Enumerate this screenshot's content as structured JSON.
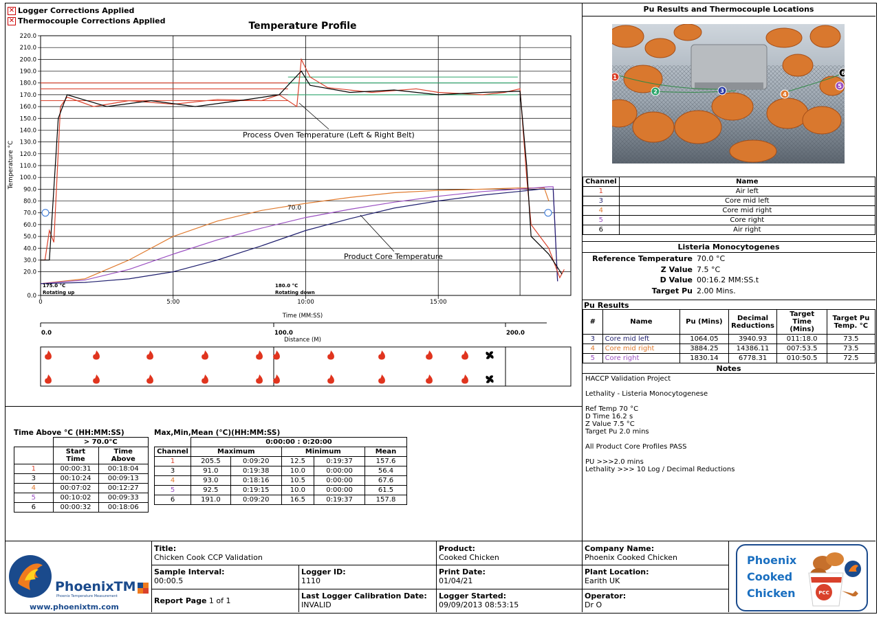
{
  "legend": {
    "logger_corrections": "Logger Corrections Applied",
    "thermocouple_corrections": "Thermocouple Corrections Applied"
  },
  "chart_data": {
    "type": "line",
    "title": "Temperature Profile",
    "xlabel": "Time (MM:SS)",
    "ylabel": "Temperature °C",
    "ylim": [
      0,
      220
    ],
    "xlim_seconds": [
      0,
      1200
    ],
    "x_ticks": [
      "0",
      "5:00",
      "10:00",
      "15:00"
    ],
    "y_ticks": [
      "0.0",
      "20.0",
      "30.0",
      "40.0",
      "50.0",
      "60.0",
      "70.0",
      "80.0",
      "90.0",
      "100.0",
      "110.0",
      "120.0",
      "130.0",
      "140.0",
      "150.0",
      "160.0",
      "170.0",
      "180.0",
      "190.0",
      "200.0",
      "210.0",
      "220.0"
    ],
    "annotations": {
      "oven": "Process Oven Temperature (Left & Right Belt)",
      "product": "Product Core Temperature",
      "ref_value": "70.0",
      "zone1_temp": "175.0 °C",
      "zone1_mode": "Rotating up",
      "zone2_temp": "180.0 °C",
      "zone2_mode": "Rotating down"
    },
    "distance": {
      "label": "Distance (M)",
      "ticks": [
        "0.0",
        "100.0",
        "200.0"
      ]
    },
    "series": [
      {
        "name": "1",
        "color": "#d9412b",
        "points": [
          [
            0,
            30
          ],
          [
            10,
            30
          ],
          [
            20,
            55
          ],
          [
            30,
            45
          ],
          [
            45,
            160
          ],
          [
            60,
            168
          ],
          [
            120,
            160
          ],
          [
            200,
            165
          ],
          [
            300,
            162
          ],
          [
            400,
            166
          ],
          [
            500,
            165
          ],
          [
            540,
            170
          ],
          [
            580,
            160
          ],
          [
            590,
            200
          ],
          [
            610,
            185
          ],
          [
            650,
            176
          ],
          [
            750,
            172
          ],
          [
            850,
            175
          ],
          [
            900,
            172
          ],
          [
            1000,
            170
          ],
          [
            1050,
            172
          ],
          [
            1085,
            175
          ],
          [
            1100,
            100
          ],
          [
            1110,
            60
          ],
          [
            1150,
            40
          ],
          [
            1175,
            15
          ],
          [
            1185,
            22
          ]
        ]
      },
      {
        "name": "3",
        "color": "#1f1f6e",
        "points": [
          [
            0,
            10
          ],
          [
            100,
            11
          ],
          [
            200,
            14
          ],
          [
            300,
            20
          ],
          [
            400,
            30
          ],
          [
            500,
            42
          ],
          [
            600,
            55
          ],
          [
            700,
            65
          ],
          [
            800,
            74
          ],
          [
            900,
            80
          ],
          [
            1000,
            85
          ],
          [
            1080,
            88
          ],
          [
            1130,
            90
          ],
          [
            1160,
            90
          ],
          [
            1170,
            12
          ]
        ]
      },
      {
        "name": "4",
        "color": "#e07a2e",
        "points": [
          [
            0,
            10
          ],
          [
            100,
            14
          ],
          [
            200,
            30
          ],
          [
            300,
            50
          ],
          [
            400,
            63
          ],
          [
            500,
            72
          ],
          [
            600,
            78
          ],
          [
            700,
            83
          ],
          [
            800,
            87
          ],
          [
            900,
            89
          ],
          [
            1000,
            90
          ],
          [
            1080,
            91
          ],
          [
            1140,
            91
          ],
          [
            1150,
            80
          ]
        ]
      },
      {
        "name": "5",
        "color": "#9a4fc1",
        "points": [
          [
            0,
            10
          ],
          [
            100,
            13
          ],
          [
            200,
            22
          ],
          [
            300,
            35
          ],
          [
            400,
            47
          ],
          [
            500,
            57
          ],
          [
            600,
            66
          ],
          [
            700,
            73
          ],
          [
            800,
            79
          ],
          [
            900,
            84
          ],
          [
            1000,
            88
          ],
          [
            1080,
            90
          ],
          [
            1150,
            92
          ],
          [
            1160,
            92
          ],
          [
            1170,
            12
          ]
        ]
      },
      {
        "name": "6",
        "color": "#000000",
        "points": [
          [
            0,
            30
          ],
          [
            20,
            30
          ],
          [
            40,
            150
          ],
          [
            60,
            170
          ],
          [
            150,
            160
          ],
          [
            250,
            165
          ],
          [
            350,
            160
          ],
          [
            450,
            165
          ],
          [
            540,
            170
          ],
          [
            590,
            190
          ],
          [
            610,
            178
          ],
          [
            700,
            172
          ],
          [
            800,
            174
          ],
          [
            900,
            170
          ],
          [
            1000,
            172
          ],
          [
            1085,
            173
          ],
          [
            1100,
            110
          ],
          [
            1110,
            50
          ],
          [
            1150,
            35
          ],
          [
            1180,
            18
          ]
        ]
      }
    ],
    "reference_lines": [
      {
        "value": 165,
        "color": "#d9412b",
        "from": 0,
        "to": 560
      },
      {
        "value": 175,
        "color": "#d9412b",
        "from": 0,
        "to": 560
      },
      {
        "value": 180,
        "color": "#d9412b",
        "from": 0,
        "to": 560
      },
      {
        "value": 170,
        "color": "#2aa56a",
        "from": 560,
        "to": 1080
      },
      {
        "value": 180,
        "color": "#2aa56a",
        "from": 560,
        "to": 1080
      },
      {
        "value": 185,
        "color": "#2aa56a",
        "from": 560,
        "to": 1080
      }
    ]
  },
  "photo_panel": {
    "title": "Pu Results and Thermocouple Locations",
    "markers": [
      "1",
      "2",
      "3",
      "4",
      "5",
      "6"
    ]
  },
  "channels": {
    "headers": [
      "Channel",
      "Name"
    ],
    "rows": [
      {
        "ch": "1",
        "name": "Air left",
        "color": "#d9412b"
      },
      {
        "ch": "3",
        "name": "Core mid left",
        "color": "#1f1f6e"
      },
      {
        "ch": "4",
        "name": "Core mid right",
        "color": "#e07a2e"
      },
      {
        "ch": "5",
        "name": "Core right",
        "color": "#9a4fc1"
      },
      {
        "ch": "6",
        "name": "Air right",
        "color": "#000000"
      }
    ]
  },
  "listeria": {
    "title": "Listeria Monocytogenes",
    "rows": [
      {
        "label": "Reference Temperature",
        "value": "70.0 °C"
      },
      {
        "label": "Z Value",
        "value": "7.5 °C"
      },
      {
        "label": "D Value",
        "value": "00:16.2 MM:SS.t"
      },
      {
        "label": "Target Pu",
        "value": "2.00 Mins."
      }
    ]
  },
  "pu_results": {
    "title": "Pu Results",
    "headers": [
      "#",
      "Name",
      "Pu (Mins)",
      "Decimal Reductions",
      "Target Time (Mins)",
      "Target Pu Temp. °C"
    ],
    "rows": [
      {
        "n": "3",
        "name": "Core mid left",
        "pu": "1064.05",
        "dec": "3940.93",
        "tt": "011:18.0",
        "tp": "73.5",
        "color": "#1f1f6e"
      },
      {
        "n": "4",
        "name": "Core mid right",
        "pu": "3884.25",
        "dec": "14386.11",
        "tt": "007:53.5",
        "tp": "73.5",
        "color": "#e07a2e"
      },
      {
        "n": "5",
        "name": "Core right",
        "pu": "1830.14",
        "dec": "6778.31",
        "tt": "010:50.5",
        "tp": "72.5",
        "color": "#9a4fc1"
      }
    ]
  },
  "notes": {
    "title": "Notes",
    "lines": [
      "HACCP Validation Project",
      "",
      "Lethality - Listeria Monocytogenese",
      "",
      "Ref Temp 70 °C",
      "D Time 16.2 s",
      "Z Value 7.5 °C",
      "Target Pu 2.0 mins",
      "",
      "All Product Core Profiles PASS",
      "",
      "PU >>>2.0 mins",
      "Lethality >>> 10 Log / Decimal Reductions"
    ]
  },
  "time_above": {
    "title": "Time Above °C (HH:MM:SS)",
    "threshold": "> 70.0°C",
    "headers": [
      "",
      "Start Time",
      "Time Above"
    ],
    "rows": [
      {
        "ch": "1",
        "start": "00:00:31",
        "above": "00:18:04",
        "color": "#d9412b"
      },
      {
        "ch": "3",
        "start": "00:10:24",
        "above": "00:09:13",
        "color": "#000000"
      },
      {
        "ch": "4",
        "start": "00:07:02",
        "above": "00:12:27",
        "color": "#e07a2e"
      },
      {
        "ch": "5",
        "start": "00:10:02",
        "above": "00:09:33",
        "color": "#9a4fc1"
      },
      {
        "ch": "6",
        "start": "00:00:32",
        "above": "00:18:06",
        "color": "#000000"
      }
    ]
  },
  "maxminmean": {
    "title": "Max,Min,Mean (°C)(HH:MM:SS)",
    "range": "0:00:00 : 0:20:00",
    "headers": [
      "Channel",
      "Maximum",
      "Minimum",
      "Mean"
    ],
    "rows": [
      {
        "ch": "1",
        "max": "205.5",
        "maxt": "0:09:20",
        "min": "12.5",
        "mint": "0:19:37",
        "mean": "157.6",
        "color": "#d9412b"
      },
      {
        "ch": "3",
        "max": "91.0",
        "maxt": "0:19:38",
        "min": "10.0",
        "mint": "0:00:00",
        "mean": "56.4",
        "color": "#000000"
      },
      {
        "ch": "4",
        "max": "93.0",
        "maxt": "0:18:16",
        "min": "10.5",
        "mint": "0:00:00",
        "mean": "67.6",
        "color": "#e07a2e"
      },
      {
        "ch": "5",
        "max": "92.5",
        "maxt": "0:19:15",
        "min": "10.0",
        "mint": "0:00:00",
        "mean": "61.5",
        "color": "#9a4fc1"
      },
      {
        "ch": "6",
        "max": "191.0",
        "maxt": "0:09:20",
        "min": "16.5",
        "mint": "0:19:37",
        "mean": "157.8",
        "color": "#000000"
      }
    ]
  },
  "footer": {
    "brand": "PhoenixTM",
    "brand_sub": "Phoenix Temperature Measurement",
    "website": "www.phoenixtm.com",
    "title_label": "Title:",
    "title_value": "Chicken Cook CCP Validation",
    "product_label": "Product:",
    "product_value": "Cooked Chicken",
    "sample_label": "Sample Interval:",
    "sample_value": "00:00.5",
    "logger_label": "Logger ID:",
    "logger_value": "1110",
    "print_label": "Print Date:",
    "print_value": "01/04/21",
    "report_label": "Report Page",
    "report_value": "1 of 1",
    "calib_label": "Last Logger Calibration Date:",
    "calib_value": "INVALID",
    "started_label": "Logger Started:",
    "started_value": "09/09/2013 08:53:15",
    "company_label": "Company Name:",
    "company_value": "Phoenix Cooked Chicken",
    "plant_label": "Plant Location:",
    "plant_value": "Earith UK",
    "operator_label": "Operator:",
    "operator_value": "Dr O",
    "company_logo": [
      "Phoenix",
      "Cooked",
      "Chicken"
    ],
    "bucket_label": "PCC"
  }
}
